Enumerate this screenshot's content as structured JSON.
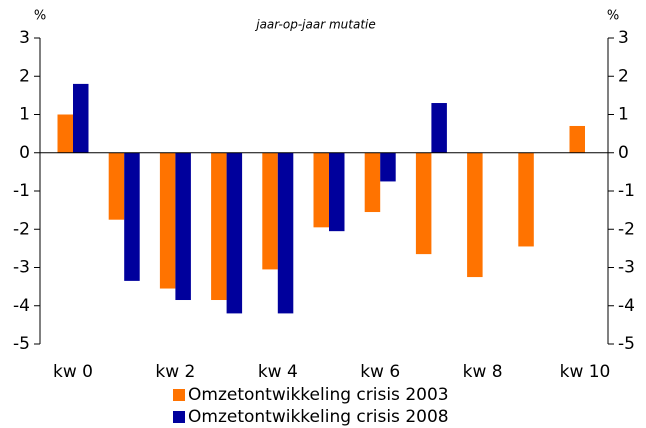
{
  "chart_data": {
    "type": "bar",
    "subtitle": "jaar-op-jaar mutatie",
    "y_label": "%",
    "y2_label": "%",
    "categories": [
      "kw 0",
      null,
      "kw 2",
      null,
      "kw 4",
      null,
      "kw 6",
      null,
      "kw 8",
      null,
      "kw 10"
    ],
    "series": [
      {
        "name": "Omzetontwikkeling crisis 2003",
        "color": "#ff7300",
        "values": [
          1.0,
          -1.75,
          -3.55,
          -3.85,
          -3.05,
          -1.95,
          -1.55,
          -2.65,
          -3.25,
          -2.45,
          0.7
        ]
      },
      {
        "name": "Omzetontwikkeling crisis 2008",
        "color": "#00009c",
        "values": [
          1.8,
          -3.35,
          -3.85,
          -4.2,
          -4.2,
          -2.05,
          -0.75,
          1.3,
          null,
          null,
          null
        ]
      }
    ],
    "ylim": [
      -5,
      3
    ],
    "yticks": [
      -5,
      -4,
      -3,
      -2,
      -1,
      0,
      1,
      2,
      3
    ],
    "y2lim": [
      -5,
      3
    ],
    "y2ticks": [
      -5,
      -4,
      -3,
      -2,
      -1,
      0,
      1,
      2,
      3
    ],
    "legend": "bottom"
  }
}
